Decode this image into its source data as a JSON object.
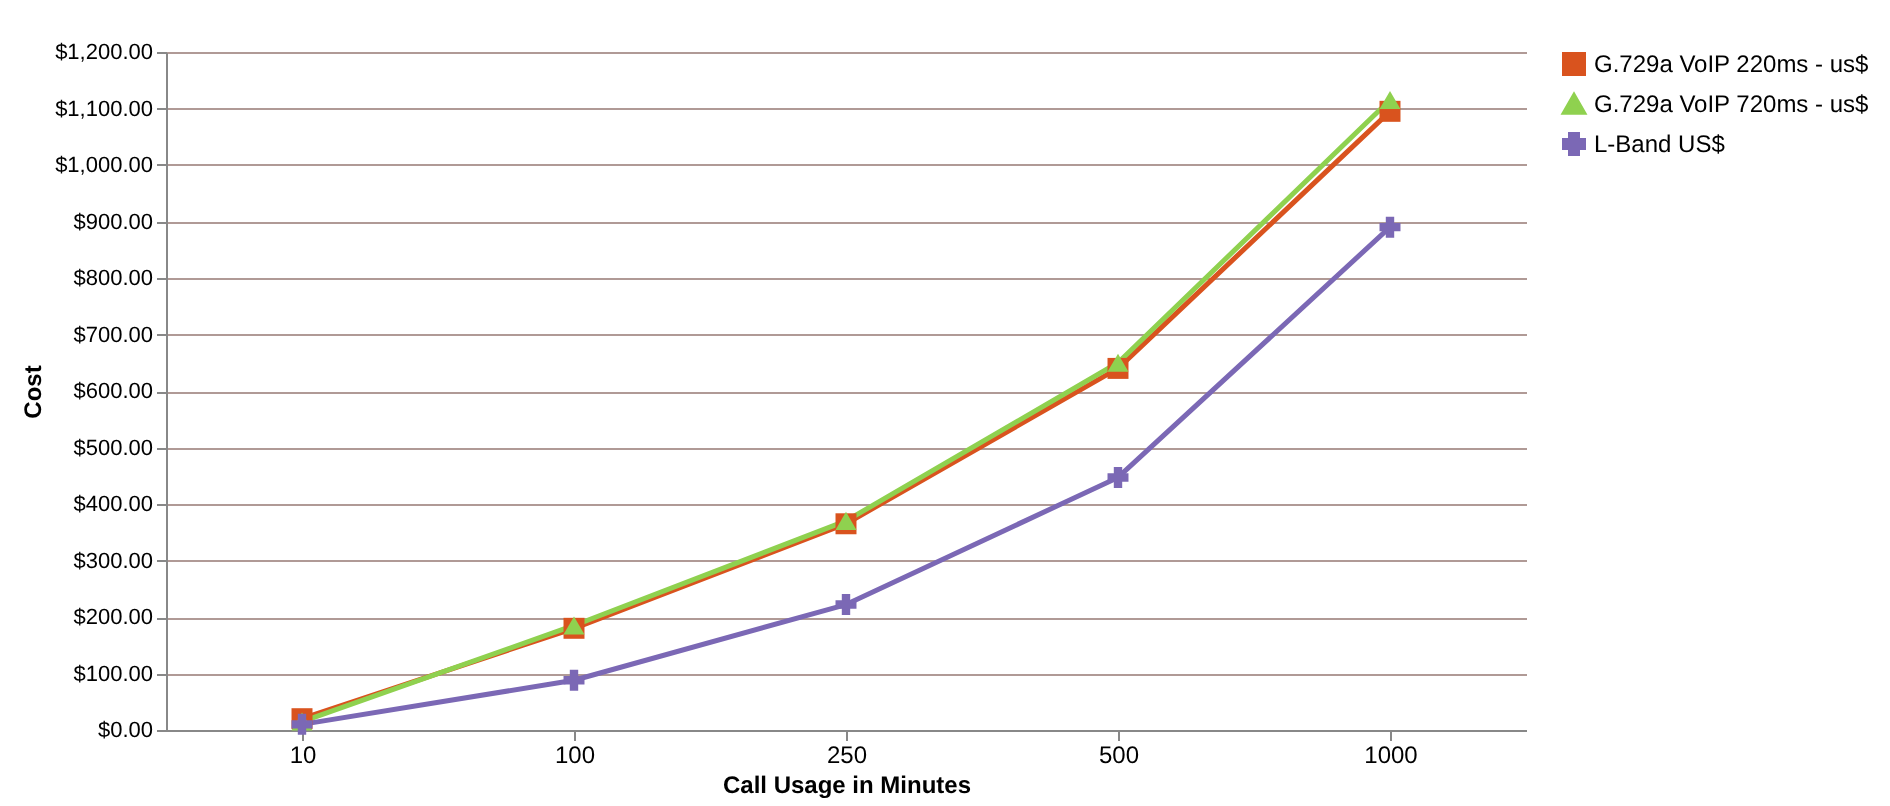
{
  "chart_data": {
    "type": "line",
    "xlabel": "Call Usage in Minutes",
    "ylabel": "Cost",
    "categories": [
      "10",
      "100",
      "250",
      "500",
      "1000"
    ],
    "series": [
      {
        "name": "G.729a VoIP 220ms - us$",
        "color": "#d9531e",
        "marker": "square",
        "values": [
          20,
          180,
          365,
          640,
          1095
        ]
      },
      {
        "name": "G.729a VoIP 720ms - us$",
        "color": "#8fd14f",
        "marker": "triangle",
        "values": [
          15,
          185,
          370,
          650,
          1115
        ]
      },
      {
        "name": "L-Band US$",
        "color": "#7b68b5",
        "marker": "cross",
        "values": [
          10,
          88,
          222,
          447,
          890
        ]
      }
    ],
    "ylim": [
      0,
      1200
    ],
    "yticks": [
      {
        "value": 0,
        "label": "$0.00"
      },
      {
        "value": 100,
        "label": "$100.00"
      },
      {
        "value": 200,
        "label": "$200.00"
      },
      {
        "value": 300,
        "label": "$300.00"
      },
      {
        "value": 400,
        "label": "$400.00"
      },
      {
        "value": 500,
        "label": "$500.00"
      },
      {
        "value": 600,
        "label": "$600.00"
      },
      {
        "value": 700,
        "label": "$700.00"
      },
      {
        "value": 800,
        "label": "$800.00"
      },
      {
        "value": 900,
        "label": "$900.00"
      },
      {
        "value": 1000,
        "label": "$1,000.00"
      },
      {
        "value": 1100,
        "label": "$1,100.00"
      },
      {
        "value": 1200,
        "label": "$1,200.00"
      }
    ],
    "grid": "y",
    "legend": "right",
    "line_style": "solid"
  }
}
